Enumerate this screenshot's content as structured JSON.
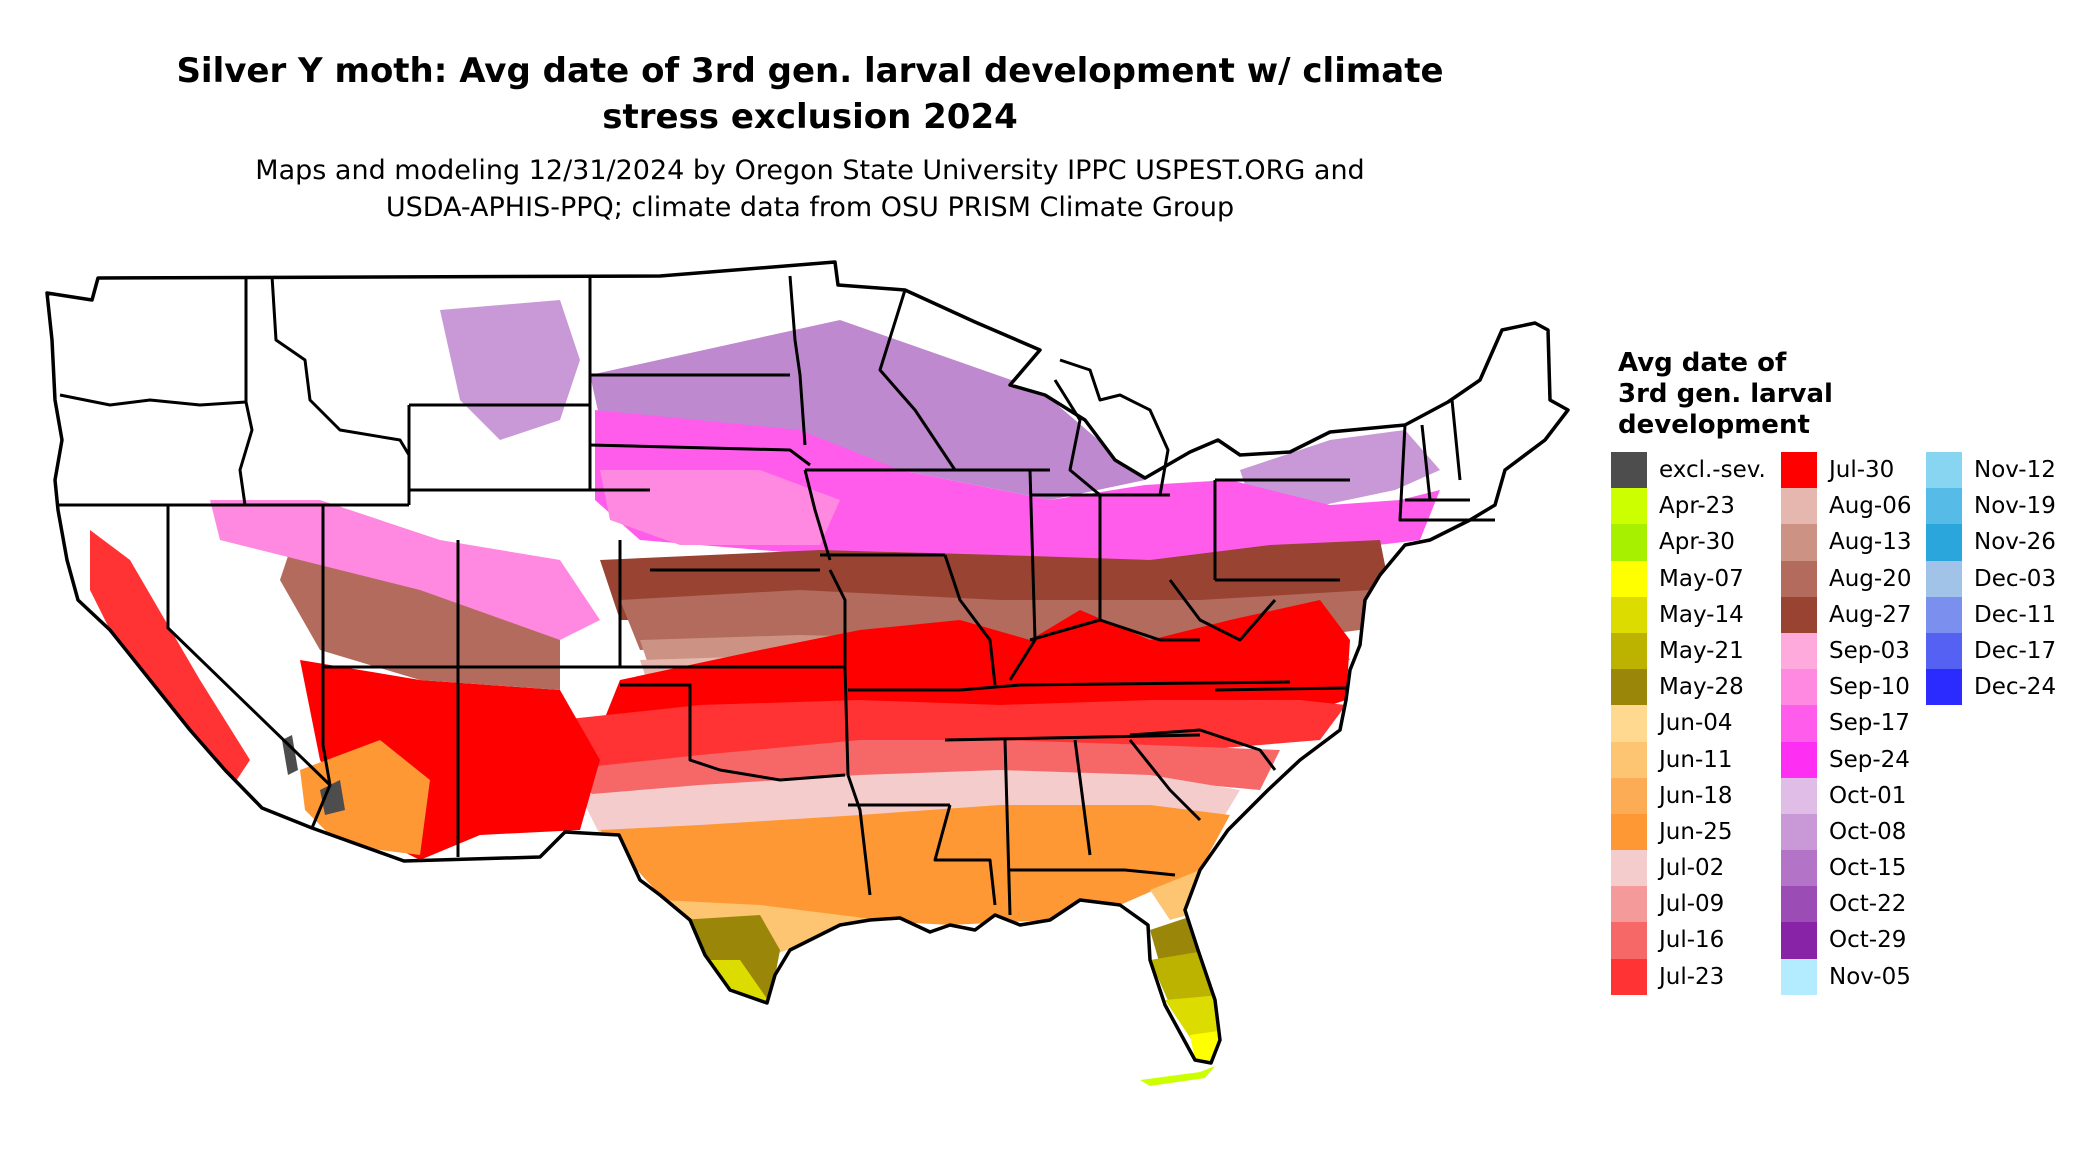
{
  "title": {
    "line1": "Silver Y moth: Avg date of 3rd gen. larval development w/ climate",
    "line2": "stress exclusion 2024"
  },
  "subtitle": {
    "line1": "Maps and modeling 12/31/2024 by Oregon State University IPPC USPEST.ORG and",
    "line2": "USDA-APHIS-PPQ; climate data from OSU PRISM Climate Group"
  },
  "legend": {
    "title_lines": [
      "Avg date of",
      "3rd gen. larval",
      "development"
    ],
    "columns": [
      [
        {
          "label": "excl.-sev.",
          "color": "#4d4d4d"
        },
        {
          "label": "Apr-23",
          "color": "#ccff00"
        },
        {
          "label": "Apr-30",
          "color": "#a6f000"
        },
        {
          "label": "May-07",
          "color": "#ffff00"
        },
        {
          "label": "May-14",
          "color": "#dcdc00"
        },
        {
          "label": "May-21",
          "color": "#bcb300"
        },
        {
          "label": "May-28",
          "color": "#9a870a"
        },
        {
          "label": "Jun-04",
          "color": "#ffd98f"
        },
        {
          "label": "Jun-11",
          "color": "#fdc571"
        },
        {
          "label": "Jun-18",
          "color": "#fbac54"
        },
        {
          "label": "Jun-25",
          "color": "#fd9834"
        },
        {
          "label": "Jul-02",
          "color": "#f4cccc"
        },
        {
          "label": "Jul-09",
          "color": "#f49a9a"
        },
        {
          "label": "Jul-16",
          "color": "#f66868"
        },
        {
          "label": "Jul-23",
          "color": "#ff3333"
        }
      ],
      [
        {
          "label": "Jul-30",
          "color": "#ff0000"
        },
        {
          "label": "Aug-06",
          "color": "#e5b7ae"
        },
        {
          "label": "Aug-13",
          "color": "#cc9283"
        },
        {
          "label": "Aug-20",
          "color": "#b26b5c"
        },
        {
          "label": "Aug-27",
          "color": "#994433"
        },
        {
          "label": "Sep-03",
          "color": "#ffaadd"
        },
        {
          "label": "Sep-10",
          "color": "#ff88e0"
        },
        {
          "label": "Sep-17",
          "color": "#ff5ceb"
        },
        {
          "label": "Sep-24",
          "color": "#ff2ef3"
        },
        {
          "label": "Oct-01",
          "color": "#e0bde6"
        },
        {
          "label": "Oct-08",
          "color": "#c998d6"
        },
        {
          "label": "Oct-15",
          "color": "#b374c7"
        },
        {
          "label": "Oct-22",
          "color": "#9c4db5"
        },
        {
          "label": "Oct-29",
          "color": "#8822a6"
        },
        {
          "label": "Nov-05",
          "color": "#b3ebff"
        }
      ],
      [
        {
          "label": "Nov-12",
          "color": "#88d5f2"
        },
        {
          "label": "Nov-19",
          "color": "#56bbe6"
        },
        {
          "label": "Nov-26",
          "color": "#2ba6dd"
        },
        {
          "label": "Dec-03",
          "color": "#a2c3e8"
        },
        {
          "label": "Dec-11",
          "color": "#7b8fee"
        },
        {
          "label": "Dec-17",
          "color": "#5461f2"
        },
        {
          "label": "Dec-24",
          "color": "#2b2bff"
        }
      ]
    ]
  },
  "map": {
    "region": "Contiguous United States",
    "background_unmodeled_color": "#ffffff",
    "boundary_color": "#000000",
    "zones": [
      {
        "name": "north-unsuitable",
        "legend": "none"
      },
      {
        "name": "upper-midwest",
        "legend": "Oct-15"
      },
      {
        "name": "northern-plains",
        "legend": "Sep-17"
      },
      {
        "name": "central-band",
        "legend": "Aug-27"
      },
      {
        "name": "mid-south",
        "legend": "Jul-30"
      },
      {
        "name": "southern-band",
        "legend": "Jul-16"
      },
      {
        "name": "gulf-band",
        "legend": "Jul-02"
      },
      {
        "name": "gulf-coast",
        "legend": "Jun-25"
      },
      {
        "name": "south-texas",
        "legend": "May-21"
      },
      {
        "name": "south-florida",
        "legend": "May-14"
      },
      {
        "name": "florida-tip",
        "legend": "May-07"
      },
      {
        "name": "florida-keys",
        "legend": "Apr-23"
      },
      {
        "name": "desert-exclusion",
        "legend": "excl.-sev."
      }
    ]
  }
}
